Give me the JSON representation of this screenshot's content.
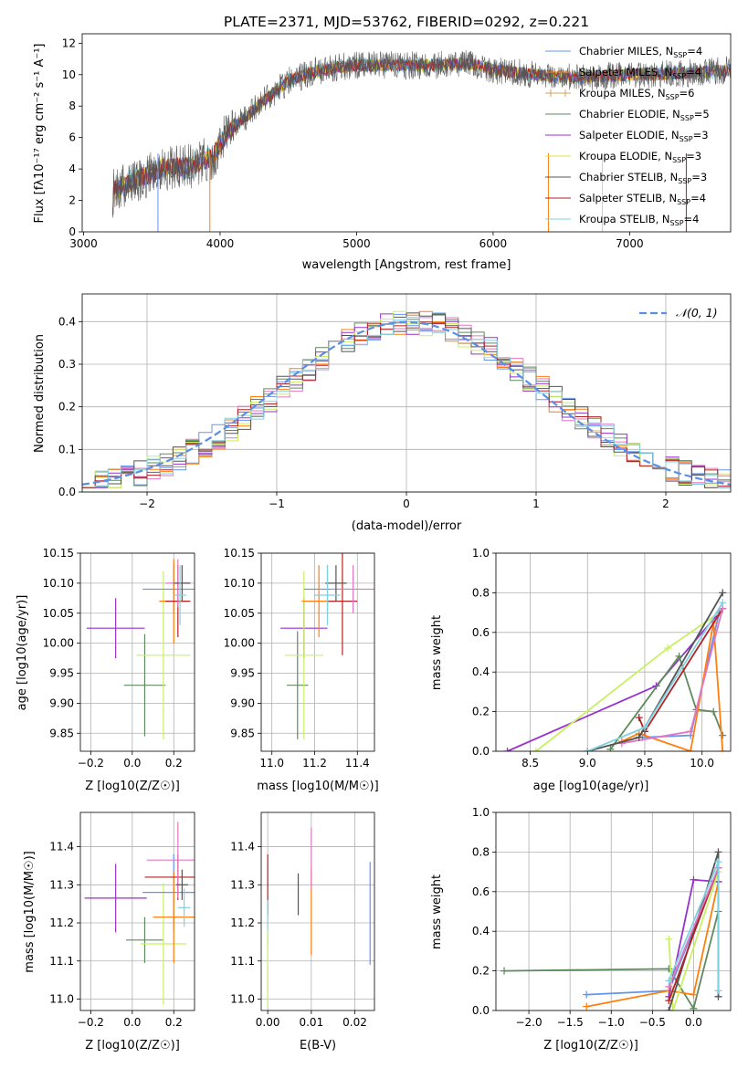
{
  "figure_title": "PLATE=2371, MJD=53762, FIBERID=0292, z=0.221",
  "chart_data": [
    {
      "id": "spectrum",
      "type": "line",
      "title": "PLATE=2371, MJD=53762, FIBERID=0292, z=0.221",
      "xlabel": "wavelength [Angstrom, rest frame]",
      "ylabel": "Flux [fλ10⁻¹⁷ erg cm⁻² s⁻¹ A⁻¹]",
      "xlim": [
        2990,
        7740
      ],
      "ylim": [
        0,
        12.6
      ],
      "xticks": [
        3000,
        4000,
        5000,
        6000,
        7000
      ],
      "yticks": [
        0,
        2,
        4,
        6,
        8,
        10,
        12
      ],
      "grid": false,
      "legend_position": "right",
      "spectrum_profile": {
        "x": [
          3210,
          3220,
          3400,
          3500,
          3560,
          3800,
          3950,
          4050,
          4150,
          4300,
          4400,
          4500,
          4700,
          4900,
          5000,
          5200,
          5400,
          5600,
          5800,
          5900,
          6000,
          6200,
          6400,
          6600,
          6800,
          7000,
          7200,
          7400,
          7600,
          7740
        ],
        "y": [
          0,
          2.6,
          3.4,
          3.7,
          4.0,
          4.2,
          4.8,
          6.3,
          7.0,
          8.2,
          8.9,
          9.6,
          10.2,
          10.5,
          10.6,
          10.6,
          10.6,
          10.6,
          10.7,
          10.6,
          10.3,
          10.1,
          9.9,
          9.8,
          9.9,
          10.0,
          10.0,
          10.1,
          10.2,
          10.3
        ],
        "noise": 0.7
      },
      "series": [
        {
          "name": "Chabrier MILES, N_SSP=4",
          "color": "#6495ed",
          "marker": "none"
        },
        {
          "name": "Salpeter MILES, N_SSP=4",
          "color": "#ff7f0e",
          "marker": "none"
        },
        {
          "name": "Kroupa MILES, N_SSP=6",
          "color": "#d2a060",
          "marker": "+"
        },
        {
          "name": "Chabrier ELODIE, N_SSP=5",
          "color": "#5f8a5f",
          "marker": "none"
        },
        {
          "name": "Salpeter ELODIE, N_SSP=3",
          "color": "#9932cc",
          "marker": "none"
        },
        {
          "name": "Kroupa ELODIE, N_SSP=3",
          "color": "#e0e040",
          "marker": "none"
        },
        {
          "name": "Chabrier STELIB, N_SSP=3",
          "color": "#555555",
          "marker": "none"
        },
        {
          "name": "Salpeter STELIB, N_SSP=4",
          "color": "#b22222",
          "marker": "none"
        },
        {
          "name": "Kroupa STELIB, N_SSP=4",
          "color": "#80d0e0",
          "marker": "none"
        }
      ],
      "legend_entries": [
        {
          "pre": "Chabrier MILES, N",
          "sub": "SSP",
          "post": "=4"
        },
        {
          "pre": "Salpeter MILES, N",
          "sub": "SSP",
          "post": "=4"
        },
        {
          "pre": "Kroupa MILES, N",
          "sub": "SSP",
          "post": "=6"
        },
        {
          "pre": "Chabrier ELODIE, N",
          "sub": "SSP",
          "post": "=5"
        },
        {
          "pre": "Salpeter ELODIE, N",
          "sub": "SSP",
          "post": "=3"
        },
        {
          "pre": "Kroupa ELODIE, N",
          "sub": "SSP",
          "post": "=3"
        },
        {
          "pre": "Chabrier STELIB, N",
          "sub": "SSP",
          "post": "=3"
        },
        {
          "pre": "Salpeter STELIB, N",
          "sub": "SSP",
          "post": "=4"
        },
        {
          "pre": "Kroupa STELIB, N",
          "sub": "SSP",
          "post": "=4"
        }
      ]
    },
    {
      "id": "residuals",
      "type": "line",
      "xlabel": "(data-model)/error",
      "ylabel": "Normed distribution",
      "xlim": [
        -2.5,
        2.5
      ],
      "ylim": [
        0,
        0.465
      ],
      "xticks": [
        -2,
        -1,
        0,
        1,
        2
      ],
      "yticks": [
        0.0,
        0.1,
        0.2,
        0.3,
        0.4
      ],
      "grid": true,
      "legend_position": "top-right",
      "legend_label": "N(0,1)",
      "bin_width": 0.1,
      "curve": {
        "name": "N(0,1)",
        "mean": 0,
        "sigma": 1,
        "color": "#5b8ee6"
      },
      "histogram_colors": [
        "#6495ed",
        "#ff7f0e",
        "#e377c2",
        "#5f8a5f",
        "#9932cc",
        "#c8f060",
        "#555555",
        "#b22222",
        "#80d0e0"
      ]
    },
    {
      "id": "age_vs_Z",
      "type": "scatter",
      "xlabel": "Z [log10(Z/Z☉)]",
      "ylabel": "age  [log10(age/yr)]",
      "xlim": [
        -0.25,
        0.3
      ],
      "ylim": [
        9.82,
        10.15
      ],
      "xticks": [
        -0.2,
        0.0,
        0.2
      ],
      "yticks": [
        9.85,
        9.9,
        9.95,
        10.0,
        10.05,
        10.1,
        10.15
      ],
      "grid": true,
      "points": [
        {
          "x": -0.08,
          "y": 10.025,
          "xerr": 0.14,
          "yerr": 0.05,
          "color": "#9932cc"
        },
        {
          "x": 0.06,
          "y": 9.93,
          "xerr": 0.1,
          "yerr": 0.085,
          "color": "#5f8a5f"
        },
        {
          "x": 0.15,
          "y": 9.98,
          "xerr": 0.13,
          "yerr": 0.14,
          "color": "#c8f060"
        },
        {
          "x": 0.2,
          "y": 10.09,
          "xerr": 0.15,
          "yerr": 0.04,
          "color": "#6495ed"
        },
        {
          "x": 0.2,
          "y": 10.07,
          "xerr": 0.07,
          "yerr": 0.07,
          "color": "#ff7f0e"
        },
        {
          "x": 0.22,
          "y": 10.07,
          "xerr": 0.06,
          "yerr": 0.06,
          "color": "#b22222"
        },
        {
          "x": 0.22,
          "y": 10.1,
          "xerr": 0.06,
          "yerr": 0.04,
          "color": "#e377c2"
        },
        {
          "x": 0.24,
          "y": 10.1,
          "xerr": 0.04,
          "yerr": 0.03,
          "color": "#555555"
        },
        {
          "x": 0.23,
          "y": 10.08,
          "xerr": 0.03,
          "yerr": 0.05,
          "color": "#80d0e0"
        }
      ]
    },
    {
      "id": "age_vs_mass",
      "type": "scatter",
      "xlabel": "mass [log10(M/M☉)]",
      "ylabel": "",
      "xlim": [
        10.95,
        11.48
      ],
      "ylim": [
        9.82,
        10.15
      ],
      "xticks": [
        11.0,
        11.2,
        11.4
      ],
      "yticks": [
        9.85,
        9.9,
        9.95,
        10.0,
        10.05,
        10.1,
        10.15
      ],
      "grid": true,
      "points": [
        {
          "x": 11.15,
          "y": 10.025,
          "xerr": 0.11,
          "yerr": 0.05,
          "color": "#9932cc"
        },
        {
          "x": 11.12,
          "y": 9.93,
          "xerr": 0.05,
          "yerr": 0.09,
          "color": "#5f8a5f"
        },
        {
          "x": 11.15,
          "y": 9.98,
          "xerr": 0.09,
          "yerr": 0.14,
          "color": "#c8f060"
        },
        {
          "x": 11.26,
          "y": 10.09,
          "xerr": 0.11,
          "yerr": 0.04,
          "color": "#6495ed"
        },
        {
          "x": 11.22,
          "y": 10.07,
          "xerr": 0.08,
          "yerr": 0.06,
          "color": "#ff7f0e"
        },
        {
          "x": 11.33,
          "y": 10.07,
          "xerr": 0.07,
          "yerr": 0.09,
          "color": "#b22222"
        },
        {
          "x": 11.38,
          "y": 10.09,
          "xerr": 0.1,
          "yerr": 0.04,
          "color": "#e377c2"
        },
        {
          "x": 11.3,
          "y": 10.1,
          "xerr": 0.05,
          "yerr": 0.03,
          "color": "#555555"
        },
        {
          "x": 11.26,
          "y": 10.08,
          "xerr": 0.06,
          "yerr": 0.05,
          "color": "#80d0e0"
        }
      ]
    },
    {
      "id": "mass_weight_vs_age",
      "type": "line",
      "xlabel": "age  [log10(age/yr)]",
      "ylabel": "mass weight",
      "xlim": [
        8.2,
        10.25
      ],
      "ylim": [
        0,
        1.0
      ],
      "xticks": [
        8.5,
        9.0,
        9.5,
        10.0
      ],
      "yticks": [
        0.0,
        0.2,
        0.4,
        0.6,
        0.8,
        1.0
      ],
      "grid": true,
      "series": [
        {
          "color": "#9932cc",
          "points": [
            [
              8.3,
              0.0
            ],
            [
              9.6,
              0.33
            ],
            [
              10.15,
              0.7
            ]
          ]
        },
        {
          "color": "#c8f060",
          "points": [
            [
              8.55,
              0.0
            ],
            [
              9.7,
              0.52
            ],
            [
              10.15,
              0.7
            ]
          ]
        },
        {
          "color": "#5f8a5f",
          "points": [
            [
              9.2,
              0.01
            ],
            [
              9.8,
              0.48
            ],
            [
              9.95,
              0.21
            ],
            [
              10.1,
              0.2
            ],
            [
              10.18,
              0.08
            ]
          ]
        },
        {
          "color": "#6495ed",
          "points": [
            [
              9.48,
              0.07
            ],
            [
              9.9,
              0.08
            ],
            [
              10.15,
              0.7
            ]
          ]
        },
        {
          "color": "#ff7f0e",
          "points": [
            [
              9.3,
              0.05
            ],
            [
              9.45,
              0.09
            ],
            [
              9.9,
              0.0
            ],
            [
              10.1,
              0.65
            ],
            [
              10.18,
              0.0
            ]
          ]
        },
        {
          "color": "#b22222",
          "points": [
            [
              9.45,
              0.17
            ],
            [
              9.5,
              0.1
            ],
            [
              10.18,
              0.72
            ]
          ]
        },
        {
          "color": "#e377c2",
          "points": [
            [
              9.3,
              0.04
            ],
            [
              9.9,
              0.1
            ],
            [
              10.18,
              0.72
            ]
          ]
        },
        {
          "color": "#555555",
          "points": [
            [
              9.0,
              0.0
            ],
            [
              9.45,
              0.07
            ],
            [
              10.18,
              0.8
            ]
          ]
        },
        {
          "color": "#80d0e0",
          "points": [
            [
              9.0,
              0.0
            ],
            [
              9.5,
              0.12
            ],
            [
              10.18,
              0.75
            ]
          ]
        }
      ]
    },
    {
      "id": "mass_vs_Z",
      "type": "scatter",
      "xlabel": "Z [log10(Z/Z☉)]",
      "ylabel": "mass [log10(M/M☉)]",
      "xlim": [
        -0.25,
        0.3
      ],
      "ylim": [
        10.97,
        11.49
      ],
      "xticks": [
        -0.2,
        0.0,
        0.2
      ],
      "yticks": [
        11.0,
        11.1,
        11.2,
        11.3,
        11.4
      ],
      "grid": true,
      "points": [
        {
          "x": -0.08,
          "y": 11.265,
          "xerr": 0.15,
          "yerr": 0.09,
          "color": "#9932cc"
        },
        {
          "x": 0.06,
          "y": 11.155,
          "xerr": 0.09,
          "yerr": 0.06,
          "color": "#5f8a5f"
        },
        {
          "x": 0.15,
          "y": 11.145,
          "xerr": 0.11,
          "yerr": 0.16,
          "color": "#c8f060"
        },
        {
          "x": 0.2,
          "y": 11.28,
          "xerr": 0.15,
          "yerr": 0.1,
          "color": "#6495ed"
        },
        {
          "x": 0.2,
          "y": 11.215,
          "xerr": 0.1,
          "yerr": 0.12,
          "color": "#ff7f0e"
        },
        {
          "x": 0.22,
          "y": 11.32,
          "xerr": 0.16,
          "yerr": 0.06,
          "color": "#b22222"
        },
        {
          "x": 0.22,
          "y": 11.365,
          "xerr": 0.15,
          "yerr": 0.1,
          "color": "#e377c2"
        },
        {
          "x": 0.24,
          "y": 11.3,
          "xerr": 0.03,
          "yerr": 0.04,
          "color": "#555555"
        },
        {
          "x": 0.25,
          "y": 11.24,
          "xerr": 0.03,
          "yerr": 0.05,
          "color": "#80d0e0"
        }
      ]
    },
    {
      "id": "mass_vs_ebv",
      "type": "scatter",
      "xlabel": "E(B-V)",
      "ylabel": "",
      "xlim": [
        -0.0015,
        0.0245
      ],
      "ylim": [
        10.97,
        11.49
      ],
      "xticks": [
        0.0,
        0.01,
        0.02
      ],
      "yticks": [
        11.0,
        11.1,
        11.2,
        11.3,
        11.4
      ],
      "grid": true,
      "points": [
        {
          "x": 0.0,
          "y": 11.3,
          "yerr": 0.08,
          "color": "#b22222"
        },
        {
          "x": 0.0,
          "y": 11.2,
          "yerr": 0.06,
          "color": "#80d0e0"
        },
        {
          "x": 0.0,
          "y": 11.08,
          "yerr": 0.1,
          "color": "#c8f060"
        },
        {
          "x": 0.007,
          "y": 11.275,
          "yerr": 0.055,
          "color": "#555555"
        },
        {
          "x": 0.01,
          "y": 11.23,
          "yerr": 0.115,
          "color": "#ff7f0e"
        },
        {
          "x": 0.01,
          "y": 11.37,
          "yerr": 0.08,
          "color": "#e377c2"
        },
        {
          "x": 0.0235,
          "y": 11.225,
          "yerr": 0.135,
          "color": "#6495ed"
        }
      ]
    },
    {
      "id": "mass_weight_vs_Z",
      "type": "line",
      "xlabel": "Z [log10(Z/Z☉)]",
      "ylabel": "mass weight",
      "xlim": [
        -2.4,
        0.45
      ],
      "ylim": [
        0,
        1.0
      ],
      "xticks": [
        -2.0,
        -1.5,
        -1.0,
        -0.5,
        0.0
      ],
      "yticks": [
        0.0,
        0.2,
        0.4,
        0.6,
        0.8,
        1.0
      ],
      "grid": true,
      "series": [
        {
          "color": "#5f8a5f",
          "points": [
            [
              -2.3,
              0.2
            ],
            [
              -0.3,
              0.21
            ],
            [
              0.0,
              0.01
            ],
            [
              0.3,
              0.5
            ]
          ]
        },
        {
          "color": "#6495ed",
          "points": [
            [
              -1.3,
              0.08
            ],
            [
              -0.3,
              0.1
            ],
            [
              0.3,
              0.72
            ]
          ]
        },
        {
          "color": "#ff7f0e",
          "points": [
            [
              -1.3,
              0.02
            ],
            [
              -0.3,
              0.1
            ],
            [
              0.0,
              0.08
            ],
            [
              0.3,
              0.65
            ]
          ]
        },
        {
          "color": "#9932cc",
          "points": [
            [
              -0.3,
              0.07
            ],
            [
              0.0,
              0.66
            ],
            [
              0.3,
              0.65
            ]
          ]
        },
        {
          "color": "#c8f060",
          "points": [
            [
              -0.3,
              0.36
            ],
            [
              -0.25,
              0.0
            ],
            [
              0.3,
              0.7
            ]
          ]
        },
        {
          "color": "#555555",
          "points": [
            [
              -0.3,
              0.0
            ],
            [
              0.3,
              0.8
            ],
            [
              0.3,
              0.07
            ]
          ]
        },
        {
          "color": "#b22222",
          "points": [
            [
              -0.3,
              0.05
            ],
            [
              0.3,
              0.72
            ]
          ]
        },
        {
          "color": "#e377c2",
          "points": [
            [
              -0.3,
              0.12
            ],
            [
              0.3,
              0.72
            ]
          ]
        },
        {
          "color": "#80d0e0",
          "points": [
            [
              -0.3,
              0.15
            ],
            [
              0.3,
              0.75
            ],
            [
              0.3,
              0.1
            ]
          ]
        }
      ]
    }
  ]
}
